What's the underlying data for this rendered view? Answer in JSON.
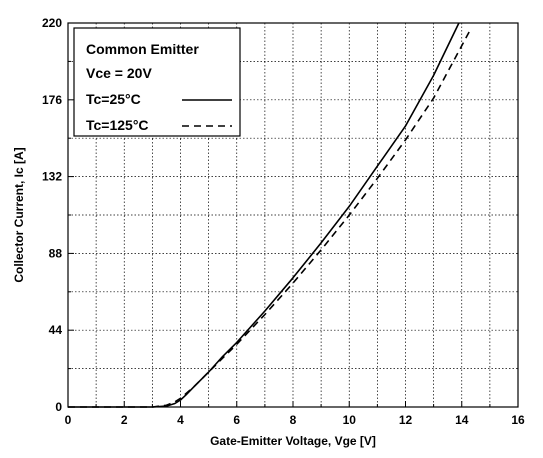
{
  "chart_data": {
    "type": "line",
    "xlabel": "Gate-Emitter Voltage, Vge [V]",
    "ylabel": "Collector Current, Ic [A]",
    "xlim": [
      0,
      16
    ],
    "ylim": [
      0,
      220
    ],
    "xticks": [
      0,
      2,
      4,
      6,
      8,
      10,
      12,
      14,
      16
    ],
    "yticks": [
      0,
      44,
      88,
      132,
      176,
      220
    ],
    "grid": true,
    "legend": {
      "position": "top-left",
      "title_lines": [
        "Common Emitter",
        "Vce = 20V"
      ],
      "entries": [
        "Tc=25°C",
        "Tc=125°C"
      ]
    },
    "series": [
      {
        "name": "Tc=25°C",
        "style": "solid",
        "x": [
          0,
          3.0,
          3.5,
          3.8,
          4.0,
          4.2,
          4.5,
          5.0,
          5.5,
          6.0,
          7.0,
          8.0,
          9.0,
          10.0,
          11.0,
          12.0,
          13.0,
          13.9
        ],
        "y": [
          0,
          0,
          0.5,
          2,
          4,
          7,
          12,
          20,
          29,
          37,
          55,
          74,
          94,
          115,
          138,
          161,
          190,
          220
        ]
      },
      {
        "name": "Tc=125°C",
        "style": "dashed",
        "x": [
          0,
          3.0,
          3.5,
          3.8,
          4.0,
          4.5,
          5.0,
          5.5,
          6.0,
          7.0,
          8.0,
          9.0,
          10.0,
          11.0,
          12.0,
          13.0,
          14.3
        ],
        "y": [
          0,
          0,
          1,
          3,
          5,
          12,
          20,
          28,
          36,
          53,
          71,
          90,
          110,
          131,
          153,
          177,
          216
        ]
      }
    ]
  }
}
